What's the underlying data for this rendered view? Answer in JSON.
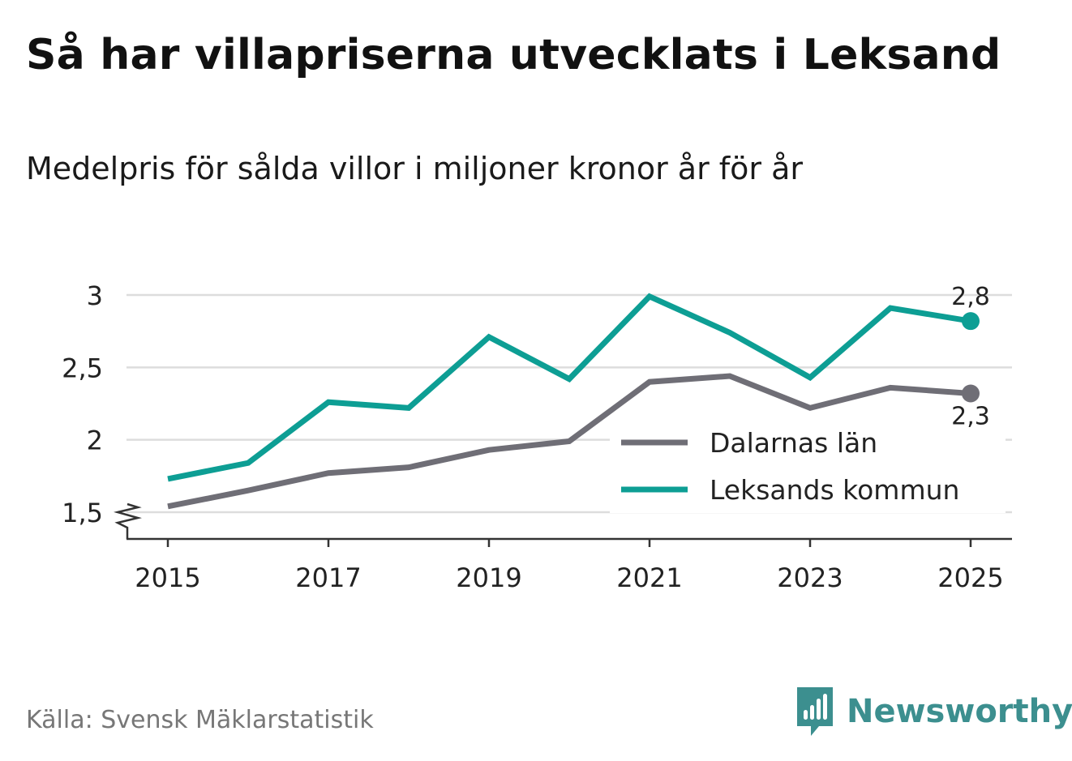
{
  "header": {
    "title": "Så har villapriserna utvecklats i Leksand",
    "subtitle": "Medelpris för sålda villor i miljoner kronor år för år"
  },
  "footer": {
    "source": "Källa: Svensk Mäklarstatistik",
    "brand_name": "Newsworthy",
    "brand_icon": "newsworthy-logo-icon"
  },
  "colors": {
    "leksand": "#0d9e94",
    "dalarna": "#6f6e76",
    "grid": "#dddddd",
    "axis": "#333333",
    "brand": "#3c8f8f"
  },
  "chart_data": {
    "type": "line",
    "title": "Så har villapriserna utvecklats i Leksand",
    "subtitle": "Medelpris för sålda villor i miljoner kronor år för år",
    "xlabel": "",
    "ylabel": "",
    "x": [
      2015,
      2016,
      2017,
      2018,
      2019,
      2020,
      2021,
      2022,
      2023,
      2024,
      2025
    ],
    "x_tick_labels": [
      "2015",
      "2017",
      "2019",
      "2021",
      "2023",
      "2025"
    ],
    "x_ticks": [
      2015,
      2017,
      2019,
      2021,
      2023,
      2025
    ],
    "y_ticks": [
      1.5,
      2,
      2.5,
      3
    ],
    "y_tick_labels": [
      "1,5",
      "2",
      "2,5",
      "3"
    ],
    "ylim": [
      1.325,
      3.0
    ],
    "xlim": [
      2014.5,
      2025.5
    ],
    "y_axis_break": true,
    "grid": true,
    "legend_position": "bottom-right",
    "series": [
      {
        "name": "Dalarnas län",
        "color": "#6f6e76",
        "values": [
          1.54,
          1.65,
          1.77,
          1.81,
          1.93,
          1.99,
          2.4,
          2.44,
          2.22,
          2.36,
          2.32
        ],
        "end_label": "2,3"
      },
      {
        "name": "Leksands kommun",
        "color": "#0d9e94",
        "values": [
          1.73,
          1.84,
          2.26,
          2.22,
          2.71,
          2.42,
          2.99,
          2.74,
          2.43,
          2.91,
          2.82
        ],
        "end_label": "2,8"
      }
    ]
  }
}
